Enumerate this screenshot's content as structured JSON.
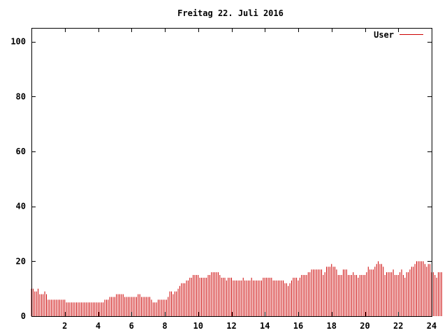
{
  "chart_data": {
    "type": "bar",
    "title": "Freitag 22. Juli 2016",
    "xlabel": "",
    "ylabel": "",
    "xlim": [
      0,
      24
    ],
    "ylim": [
      0,
      105
    ],
    "x_ticks": [
      2,
      4,
      6,
      8,
      10,
      12,
      14,
      16,
      18,
      20,
      22,
      24
    ],
    "y_ticks": [
      0,
      20,
      40,
      60,
      80,
      100
    ],
    "grid": false,
    "legend": "top-right",
    "color": "#cc0000",
    "series": [
      {
        "name": "User",
        "x_start": 0,
        "x_step": 0.1,
        "values": [
          10,
          10,
          9,
          9,
          10,
          8,
          8,
          8,
          9,
          8,
          6,
          6,
          6,
          6,
          6,
          6,
          6,
          6,
          6,
          6,
          6,
          5,
          5,
          5,
          5,
          5,
          5,
          5,
          5,
          5,
          5,
          5,
          5,
          5,
          5,
          5,
          5,
          5,
          5,
          5,
          5,
          5,
          5,
          5,
          6,
          6,
          6,
          7,
          7,
          7,
          7,
          8,
          8,
          8,
          8,
          8,
          7,
          7,
          7,
          7,
          7,
          7,
          7,
          7,
          8,
          8,
          7,
          7,
          7,
          7,
          7,
          7,
          6,
          5,
          5,
          5,
          6,
          6,
          6,
          6,
          6,
          6,
          7,
          9,
          9,
          8,
          9,
          9,
          10,
          11,
          12,
          12,
          12,
          13,
          13,
          14,
          14,
          15,
          15,
          15,
          15,
          14,
          14,
          14,
          14,
          14,
          15,
          15,
          16,
          16,
          16,
          16,
          16,
          15,
          14,
          14,
          14,
          13,
          14,
          14,
          14,
          13,
          13,
          13,
          13,
          13,
          13,
          14,
          13,
          13,
          13,
          13,
          14,
          13,
          13,
          13,
          13,
          13,
          13,
          14,
          14,
          14,
          14,
          14,
          14,
          13,
          13,
          13,
          13,
          13,
          13,
          13,
          12,
          12,
          11,
          12,
          13,
          14,
          14,
          14,
          13,
          14,
          15,
          15,
          15,
          15,
          16,
          16,
          17,
          17,
          17,
          17,
          17,
          17,
          17,
          15,
          16,
          18,
          18,
          18,
          19,
          18,
          18,
          17,
          15,
          15,
          15,
          17,
          17,
          17,
          15,
          15,
          15,
          16,
          15,
          15,
          14,
          15,
          15,
          15,
          15,
          16,
          18,
          17,
          17,
          17,
          18,
          19,
          20,
          19,
          19,
          18,
          15,
          16,
          16,
          16,
          16,
          17,
          15,
          15,
          15,
          16,
          17,
          15,
          14,
          16,
          16,
          17,
          18,
          18,
          19,
          20,
          20,
          20,
          20,
          20,
          19,
          18,
          19,
          19,
          16,
          16,
          15,
          14,
          16,
          16,
          16
        ]
      }
    ]
  }
}
